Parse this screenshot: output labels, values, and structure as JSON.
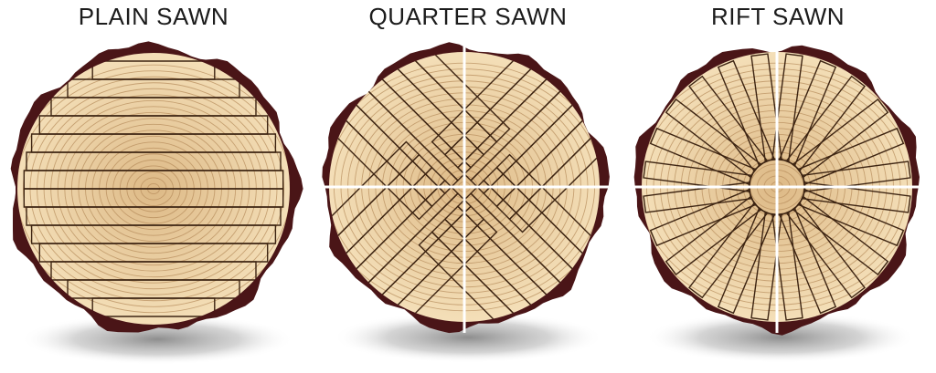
{
  "labels": {
    "plain": "PLAIN SAWN",
    "quarter": "QUARTER SAWN",
    "rift": "RIFT SAWN"
  },
  "colors": {
    "bark": "#4a1517",
    "wood": "#f2dcb3",
    "wood_center": "#ddb986",
    "ring": "#b58a5a",
    "board_edge": "#3d2412",
    "saw_line": "#ffffff",
    "shadow": "#8c8c8c",
    "title": "#1c1c1c"
  }
}
